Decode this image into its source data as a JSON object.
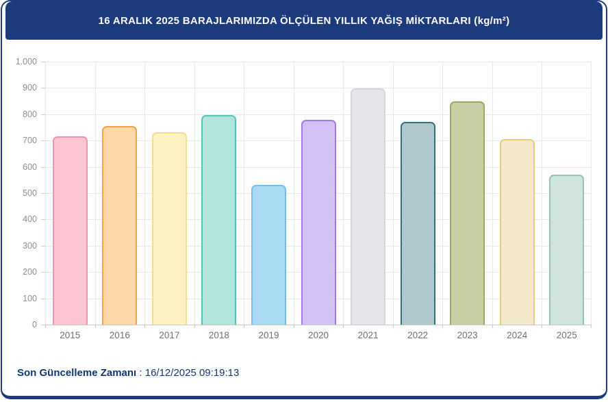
{
  "header": {
    "title": "16 ARALIK 2025 BARAJLARIMIZDA ÖLÇÜLEN YILLIK YAĞIŞ MİKTARLARI (kg/m²)",
    "background": "#1b3b7d"
  },
  "footer": {
    "label": "Son Güncelleme Zamanı",
    "separator": " : ",
    "value": "16/12/2025 09:19:13"
  },
  "chart_data": {
    "type": "bar",
    "title": "16 ARALIK 2025 BARAJLARIMIZDA ÖLÇÜLEN YILLIK YAĞIŞ MİKTARLARI (kg/m²)",
    "categories": [
      "2015",
      "2016",
      "2017",
      "2018",
      "2019",
      "2020",
      "2021",
      "2022",
      "2023",
      "2024",
      "2025"
    ],
    "values": [
      717,
      756,
      733,
      797,
      531,
      778,
      898,
      772,
      850,
      705,
      571
    ],
    "xlabel": "",
    "ylabel": "",
    "ylim": [
      0,
      1000
    ],
    "ytick_step": 100,
    "ytick_labels": [
      "0",
      "100",
      "200",
      "300",
      "400",
      "500",
      "600",
      "700",
      "800",
      "900",
      "1.000"
    ],
    "grid": true,
    "legend": "none",
    "bar_colors": [
      {
        "fill": "#fdc6d4",
        "border": "#f391af"
      },
      {
        "fill": "#fcd8a9",
        "border": "#efa43e"
      },
      {
        "fill": "#fdf0c2",
        "border": "#f3dc8e"
      },
      {
        "fill": "#b3e5df",
        "border": "#56c3b9"
      },
      {
        "fill": "#abdaf4",
        "border": "#6fc0ee"
      },
      {
        "fill": "#d3c1f3",
        "border": "#a475ef"
      },
      {
        "fill": "#e4e6e9",
        "border": "#d2d6da"
      },
      {
        "fill": "#b0c9ce",
        "border": "#31707f"
      },
      {
        "fill": "#c9d0a4",
        "border": "#9fa65e"
      },
      {
        "fill": "#f4e9cd",
        "border": "#e8ca78"
      },
      {
        "fill": "#cfe5db",
        "border": "#94c3af"
      }
    ]
  },
  "colors": {
    "frame": "#1b3b7d",
    "grid": "#e8e8e8",
    "axis": "#c9c9c9",
    "ytick_text": "#8d8d8d",
    "xtick_text": "#6f6f6f",
    "footer_text": "#16356f"
  }
}
